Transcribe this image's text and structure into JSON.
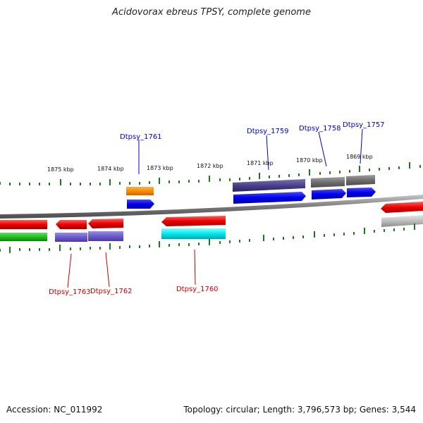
{
  "title": "Acidovorax ebreus TPSY, complete genome",
  "footer": {
    "accession": "Accession: NC_011992",
    "stats": "Topology: circular; Length: 3,796,573 bp; Genes: 3,544"
  },
  "scale_labels": [
    "1875 kbp",
    "1874 kbp",
    "1873 kbp",
    "1872 kbp",
    "1871 kbp",
    "1870 kbp",
    "1869 kbp"
  ],
  "gene_labels": {
    "top": [
      "Dtpsy_1761",
      "Dtpsy_1759",
      "Dtpsy_1758",
      "Dtpsy_1757"
    ],
    "bottom": [
      "Dtpsy_1763",
      "Dtpsy_1762",
      "Dtpsy_1760"
    ]
  },
  "colors": {
    "forward_label": "#0000cc",
    "reverse_label": "#cc0000",
    "tick": "#1a7a1a",
    "backbone": "#808080"
  }
}
